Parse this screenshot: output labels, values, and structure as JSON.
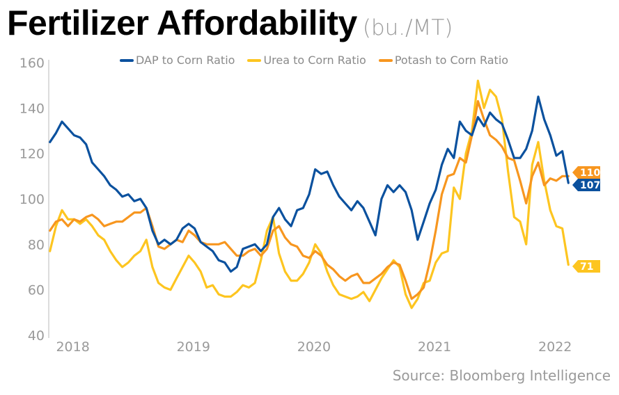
{
  "chart_data": {
    "type": "line",
    "title": "Fertilizer Affordability",
    "subtitle": "(bu./MT)",
    "xlabel": "",
    "ylabel": "",
    "ylim": [
      40,
      160
    ],
    "xlim": [
      2017.8,
      2022.12
    ],
    "yticks": [
      40,
      60,
      80,
      100,
      120,
      140,
      160
    ],
    "xticks": [
      2018,
      2019,
      2020,
      2021,
      2022
    ],
    "x_start": 2017.81,
    "x_step": 0.05,
    "grid": false,
    "legend_position": "top-center",
    "source": "Source: Bloomberg Intelligence",
    "series": [
      {
        "name": "DAP to Corn Ratio",
        "color": "#0b519e",
        "last_label": "107",
        "values": [
          125,
          129,
          134,
          131,
          128,
          127,
          124,
          116,
          113,
          110,
          106,
          104,
          101,
          102,
          99,
          100,
          96,
          86,
          80,
          82,
          80,
          82,
          87,
          89,
          87,
          81,
          79,
          77,
          73,
          72,
          68,
          70,
          78,
          79,
          80,
          77,
          80,
          92,
          96,
          91,
          88,
          95,
          96,
          102,
          113,
          111,
          112,
          106,
          101,
          98,
          95,
          99,
          96,
          90,
          84,
          100,
          106,
          103,
          106,
          103,
          95,
          82,
          90,
          98,
          104,
          115,
          122,
          118,
          134,
          130,
          128,
          136,
          132,
          138,
          135,
          133,
          126,
          118,
          118,
          122,
          130,
          145,
          135,
          128,
          119,
          121,
          107
        ]
      },
      {
        "name": "Urea to Corn Ratio",
        "color": "#fdc520",
        "last_label": "71",
        "values": [
          77,
          88,
          95,
          91,
          91,
          89,
          91,
          88,
          84,
          82,
          77,
          73,
          70,
          72,
          75,
          77,
          82,
          70,
          63,
          61,
          60,
          65,
          70,
          75,
          72,
          68,
          61,
          62,
          58,
          57,
          57,
          59,
          62,
          61,
          63,
          73,
          86,
          92,
          76,
          68,
          64,
          64,
          67,
          72,
          80,
          76,
          68,
          62,
          58,
          57,
          56,
          57,
          59,
          55,
          60,
          65,
          69,
          73,
          70,
          58,
          52,
          56,
          63,
          64,
          72,
          76,
          77,
          105,
          100,
          120,
          130,
          152,
          140,
          148,
          145,
          135,
          112,
          92,
          90,
          80,
          115,
          125,
          108,
          95,
          88,
          87,
          71
        ]
      },
      {
        "name": "Potash to Corn Ratio",
        "color": "#f7961f",
        "last_label": "110",
        "values": [
          86,
          90,
          91,
          88,
          91,
          90,
          92,
          93,
          91,
          88,
          89,
          90,
          90,
          92,
          94,
          94,
          96,
          88,
          79,
          78,
          80,
          82,
          81,
          86,
          84,
          81,
          80,
          80,
          80,
          81,
          78,
          75,
          75,
          77,
          78,
          75,
          78,
          86,
          88,
          83,
          80,
          79,
          75,
          74,
          77,
          75,
          71,
          69,
          66,
          64,
          66,
          67,
          63,
          63,
          65,
          67,
          70,
          72,
          71,
          64,
          56,
          58,
          61,
          72,
          86,
          102,
          110,
          111,
          118,
          116,
          128,
          143,
          135,
          128,
          126,
          123,
          118,
          117,
          108,
          98,
          110,
          116,
          106,
          109,
          108,
          110,
          110
        ]
      }
    ]
  }
}
